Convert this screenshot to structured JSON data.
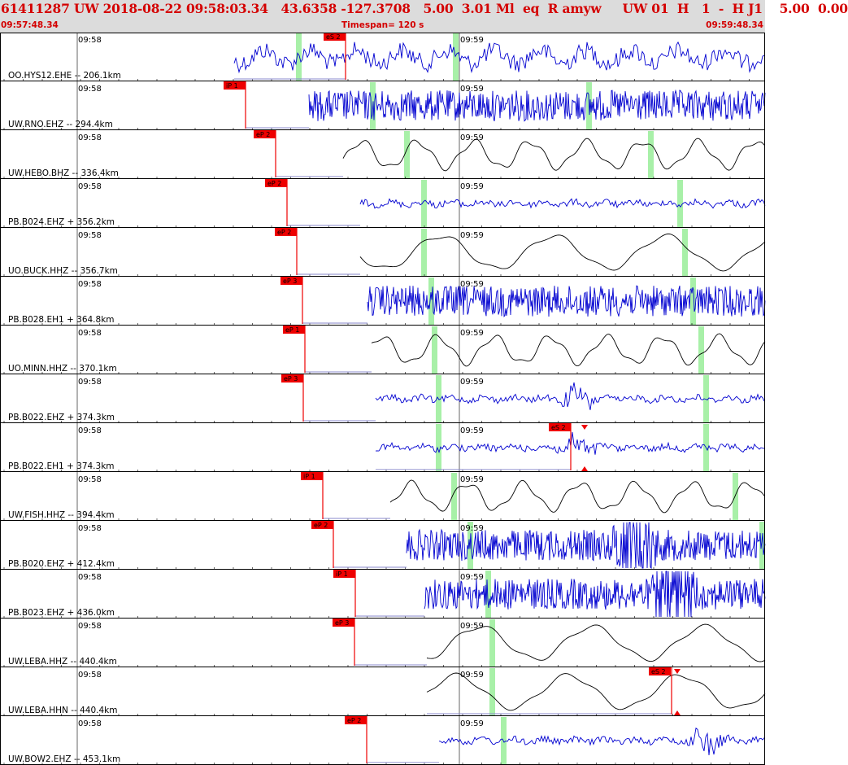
{
  "header": {
    "title": "61411287 UW 2018-08-22 09:58:03.34   43.6358 -127.3708   5.00  3.01 Ml  eq  R amyw     UW 01  H   1  -  H J1    5.00  0.00",
    "start_time": "09:57:48.34",
    "timespan": "Timespan= 120 s",
    "end_time": "09:59:48.34"
  },
  "colors": {
    "accent": "#d40000",
    "header_bg": "#dcdcdc",
    "trace_blue": "#0000d0",
    "trace_black": "#000000",
    "pick": "#ee0000",
    "highlight": "#a8f0a8"
  },
  "time_ticks": [
    "09:58",
    "09:59"
  ],
  "traces": [
    {
      "station": "OO.HYS12.EHE -- 206.1km",
      "pick": "eS 2",
      "color": "blue",
      "style": "noise"
    },
    {
      "station": "UW.RNO.EHZ -- 294.4km",
      "pick": "iP 1",
      "color": "blue",
      "style": "dense"
    },
    {
      "station": "UW.HEBO.BHZ -- 336.4km",
      "pick": "eP 2",
      "color": "black",
      "style": "wave"
    },
    {
      "station": "PB.B024.EHZ + 356.2km",
      "pick": "eP 2",
      "color": "blue",
      "style": "quiet"
    },
    {
      "station": "UO.BUCK.HHZ -- 356.7km",
      "pick": "eP 2",
      "color": "black",
      "style": "slow"
    },
    {
      "station": "PB.B028.EH1 + 364.8km",
      "pick": "eP 3",
      "color": "blue",
      "style": "dense"
    },
    {
      "station": "UO.MINN.HHZ -- 370.1km",
      "pick": "eP 1",
      "color": "black",
      "style": "wave"
    },
    {
      "station": "PB.B022.EHZ + 374.3km",
      "pick": "eP 3",
      "color": "blue",
      "style": "quiet"
    },
    {
      "station": "PB.B022.EH1 + 374.3km",
      "pick": "eS 2",
      "color": "blue",
      "style": "quiet"
    },
    {
      "station": "UW.FISH.HHZ -- 394.4km",
      "pick": "iP 1",
      "color": "black",
      "style": "wave"
    },
    {
      "station": "PB.B020.EHZ + 412.4km",
      "pick": "eP 2",
      "color": "blue",
      "style": "dense"
    },
    {
      "station": "PB.B023.EHZ + 436.0km",
      "pick": "iP 1",
      "color": "blue",
      "style": "dense"
    },
    {
      "station": "UW.LEBA.HHZ -- 440.4km",
      "pick": "eP 3",
      "color": "black",
      "style": "slow"
    },
    {
      "station": "UW.LEBA.HHN -- 440.4km",
      "pick": "eS 2",
      "color": "black",
      "style": "slow"
    },
    {
      "station": "UW.BOW2.EHZ -- 453.1km",
      "pick": "eP 2",
      "color": "blue",
      "style": "quiet"
    }
  ]
}
